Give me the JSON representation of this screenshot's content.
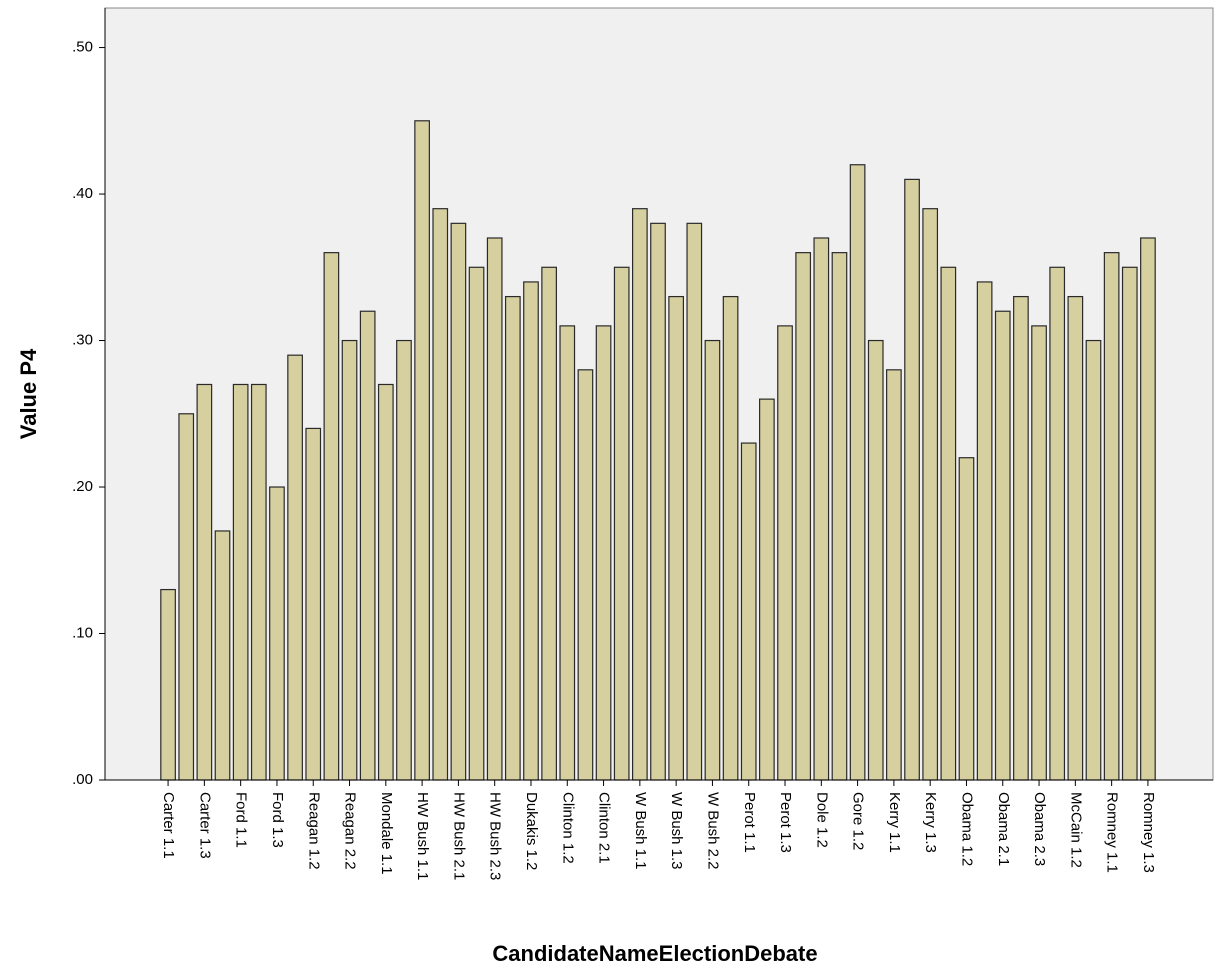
{
  "chart_data": {
    "type": "bar",
    "x_label": "CandidateNameElectionDebate",
    "y_label": "Value P4",
    "categories": [
      "Carter 1.1",
      null,
      "Carter 1.3",
      null,
      "Ford 1.1",
      null,
      "Ford 1.3",
      null,
      "Reagan 1.2",
      null,
      "Reagan 2.2",
      null,
      "Mondale 1.1",
      null,
      "HW Bush 1.1",
      null,
      "HW Bush 2.1",
      null,
      "HW Bush 2.3",
      null,
      "Dukakis 1.2",
      null,
      "Clinton 1.2",
      null,
      "Clinton 2.1",
      null,
      "W Bush 1.1",
      null,
      "W Bush 1.3",
      null,
      "W Bush 2.2",
      null,
      "Perot 1.1",
      null,
      "Perot 1.3",
      null,
      "Dole 1.2",
      null,
      "Gore 1.2",
      null,
      "Kerry 1.1",
      null,
      "Kerry 1.3",
      null,
      "Obama 1.2",
      null,
      "Obama 2.1",
      null,
      "Obama 2.3",
      null,
      "McCain 1.2",
      null,
      "Romney 1.1",
      null,
      "Romney 1.3"
    ],
    "values": [
      0.13,
      0.25,
      0.27,
      0.17,
      0.27,
      0.27,
      0.2,
      0.29,
      0.24,
      0.36,
      0.3,
      0.32,
      0.27,
      0.3,
      0.45,
      0.39,
      0.38,
      0.35,
      0.37,
      0.33,
      0.34,
      0.35,
      0.31,
      0.28,
      0.31,
      0.35,
      0.39,
      0.38,
      0.33,
      0.38,
      0.3,
      0.33,
      0.23,
      0.26,
      0.31,
      0.36,
      0.37,
      0.36,
      0.42,
      0.3,
      0.28,
      0.41,
      0.39,
      0.35,
      0.22,
      0.34,
      0.32,
      0.33,
      0.31,
      0.35,
      0.33,
      0.3,
      0.36,
      0.35,
      0.37
    ],
    "color": "#d6cf9f",
    "ylim": [
      0,
      0.527
    ],
    "yticks": [
      {
        "value": 0,
        "label": ".00"
      },
      {
        "value": 0.1,
        "label": ".10"
      },
      {
        "value": 0.2,
        "label": ".20"
      },
      {
        "value": 0.3,
        "label": ".30"
      },
      {
        "value": 0.4,
        "label": ".40"
      },
      {
        "value": 0.5,
        "label": ".50"
      }
    ]
  }
}
